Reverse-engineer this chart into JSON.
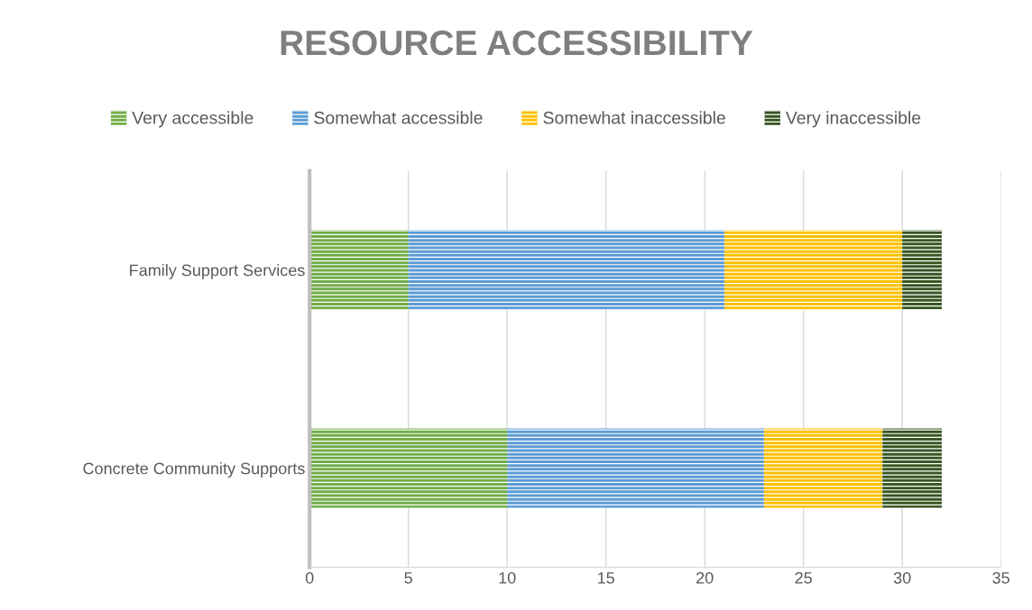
{
  "chart_data": {
    "type": "bar",
    "title": "RESOURCE ACCESSIBILITY",
    "orientation": "horizontal",
    "stacked": true,
    "categories": [
      "Family Support Services",
      "Concrete Community Supports"
    ],
    "series": [
      {
        "name": "Very accessible",
        "color": "#70ad47",
        "values": [
          5,
          10
        ]
      },
      {
        "name": "Somewhat accessible",
        "color": "#5b9bd5",
        "values": [
          16,
          13
        ]
      },
      {
        "name": "Somewhat inaccessible",
        "color": "#ffc000",
        "values": [
          9,
          6
        ]
      },
      {
        "name": "Very inaccessible",
        "color": "#375623",
        "values": [
          2,
          3
        ]
      }
    ],
    "xlim": [
      0,
      35
    ],
    "xticks": [
      0,
      5,
      10,
      15,
      20,
      25,
      30,
      35
    ],
    "grid": "x",
    "legend": "top"
  }
}
